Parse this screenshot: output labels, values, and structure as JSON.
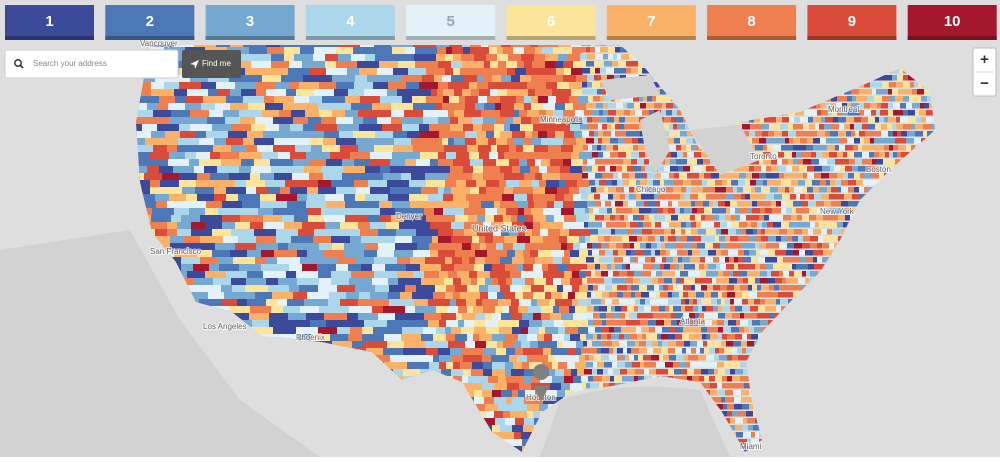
{
  "legend": [
    {
      "label": "1",
      "color": "#3b4a9a"
    },
    {
      "label": "2",
      "color": "#4d78b8"
    },
    {
      "label": "3",
      "color": "#76a9d1"
    },
    {
      "label": "4",
      "color": "#acd6ea"
    },
    {
      "label": "5",
      "color": "#e3f2f8"
    },
    {
      "label": "6",
      "color": "#fde49b"
    },
    {
      "label": "7",
      "color": "#fbb167"
    },
    {
      "label": "8",
      "color": "#ef7f4e"
    },
    {
      "label": "9",
      "color": "#db4b3a"
    },
    {
      "label": "10",
      "color": "#a4172c"
    }
  ],
  "search": {
    "placeholder": "Search your address",
    "button": "Find me"
  },
  "zoom": {
    "in": "+",
    "out": "−"
  },
  "places": [
    "Vancouver",
    "San Francisco",
    "Los Angeles",
    "Phoenix",
    "Denver",
    "United States",
    "Minneapolis",
    "Chicago",
    "Toronto",
    "Montreal",
    "Boston",
    "New York",
    "Atlanta",
    "Houston",
    "Miami"
  ]
}
